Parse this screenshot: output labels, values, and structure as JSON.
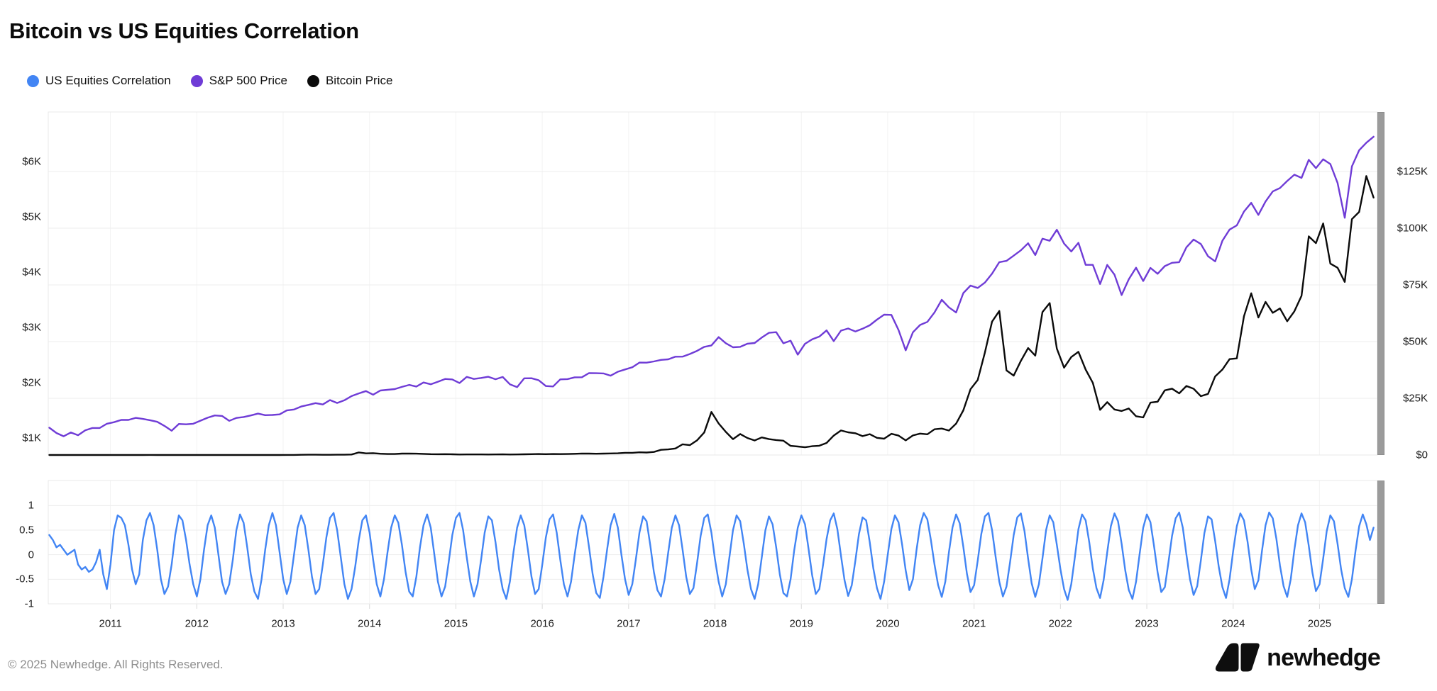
{
  "header": {
    "title": "Bitcoin vs US Equities Correlation"
  },
  "legend": {
    "items": [
      {
        "label": "US Equities Correlation",
        "color": "#4285F4"
      },
      {
        "label": "S&P 500 Price",
        "color": "#6F3CD6"
      },
      {
        "label": "Bitcoin Price",
        "color": "#0B0B0B"
      }
    ]
  },
  "footer": {
    "copyright": "© 2025 Newhedge. All Rights Reserved.",
    "brand": "newhedge"
  },
  "chart_data": {
    "type": "line",
    "title": "Bitcoin vs US Equities Correlation",
    "grid": true,
    "legend_position": "top-left",
    "x_domain": [
      2010.28,
      2025.67
    ],
    "x_ticks": [
      2011,
      2012,
      2013,
      2014,
      2015,
      2016,
      2017,
      2018,
      2019,
      2020,
      2021,
      2022,
      2023,
      2024,
      2025
    ],
    "axes": {
      "sp500": {
        "side": "left",
        "range": [
          692,
          6897
        ],
        "ticks": [
          {
            "value": 1000,
            "label": "$1K"
          },
          {
            "value": 2000,
            "label": "$2K"
          },
          {
            "value": 3000,
            "label": "$3K"
          },
          {
            "value": 4000,
            "label": "$4K"
          },
          {
            "value": 5000,
            "label": "$5K"
          },
          {
            "value": 6000,
            "label": "$6K"
          }
        ]
      },
      "bitcoin": {
        "side": "right",
        "range": [
          0,
          151250
        ],
        "ticks": [
          {
            "value": 0,
            "label": "$0"
          },
          {
            "value": 25000,
            "label": "$25K"
          },
          {
            "value": 50000,
            "label": "$50K"
          },
          {
            "value": 75000,
            "label": "$75K"
          },
          {
            "value": 100000,
            "label": "$100K"
          },
          {
            "value": 125000,
            "label": "$125K"
          }
        ]
      },
      "correlation": {
        "side": "left",
        "panel": "lower",
        "range": [
          -1,
          1.51
        ],
        "ticks": [
          {
            "value": 1,
            "label": "1"
          },
          {
            "value": 0.5,
            "label": "0.5"
          },
          {
            "value": 0,
            "label": "0"
          },
          {
            "value": -0.5,
            "label": "-0.5"
          },
          {
            "value": -1,
            "label": "-1"
          }
        ]
      }
    },
    "series": [
      {
        "name": "S&P 500 Price",
        "axis": "sp500",
        "panel": "main",
        "color": "#6F3CD6",
        "x_start": 2010.292,
        "x_step": 0.0833333,
        "values": [
          1186,
          1089,
          1031,
          1100,
          1050,
          1140,
          1180,
          1180,
          1258,
          1286,
          1327,
          1326,
          1364,
          1345,
          1321,
          1292,
          1219,
          1131,
          1253,
          1247,
          1258,
          1312,
          1366,
          1408,
          1398,
          1310,
          1362,
          1379,
          1407,
          1441,
          1412,
          1416,
          1426,
          1498,
          1515,
          1569,
          1598,
          1631,
          1606,
          1686,
          1633,
          1682,
          1757,
          1806,
          1848,
          1783,
          1859,
          1872,
          1884,
          1924,
          1960,
          1931,
          2003,
          1972,
          2018,
          2068,
          2059,
          1995,
          2105,
          2068,
          2086,
          2107,
          2063,
          2104,
          1972,
          1920,
          2079,
          2080,
          2044,
          1940,
          1932,
          2060,
          2065,
          2097,
          2099,
          2174,
          2171,
          2168,
          2126,
          2199,
          2239,
          2279,
          2364,
          2363,
          2384,
          2412,
          2423,
          2470,
          2472,
          2519,
          2575,
          2648,
          2674,
          2824,
          2714,
          2641,
          2648,
          2705,
          2718,
          2816,
          2902,
          2914,
          2712,
          2760,
          2507,
          2704,
          2784,
          2834,
          2946,
          2752,
          2942,
          2980,
          2926,
          2977,
          3038,
          3141,
          3231,
          3226,
          2954,
          2585,
          2912,
          3044,
          3100,
          3271,
          3500,
          3363,
          3270,
          3622,
          3756,
          3714,
          3811,
          3973,
          4181,
          4204,
          4298,
          4395,
          4523,
          4308,
          4605,
          4567,
          4766,
          4516,
          4374,
          4530,
          4132,
          4132,
          3785,
          4130,
          3955,
          3586,
          3872,
          4080,
          3840,
          4077,
          3970,
          4109,
          4169,
          4180,
          4450,
          4589,
          4508,
          4288,
          4194,
          4568,
          4770,
          4846,
          5096,
          5254,
          5036,
          5278,
          5460,
          5522,
          5648,
          5762,
          5705,
          6032,
          5882,
          6041,
          5955,
          5612,
          4983,
          5912,
          6205,
          6340,
          6450
        ]
      },
      {
        "name": "Bitcoin Price",
        "axis": "bitcoin",
        "panel": "main",
        "color": "#0B0B0B",
        "x_start": 2010.292,
        "x_step": 0.0833333,
        "values": [
          0.05,
          0.05,
          0.06,
          0.06,
          0.06,
          0.06,
          0.2,
          0.2,
          0.3,
          1,
          1,
          1,
          3,
          9,
          17,
          13,
          10,
          5,
          3,
          3,
          4,
          5,
          5,
          5,
          5,
          5,
          7,
          9,
          10,
          12,
          11,
          12,
          13,
          20,
          33,
          93,
          139,
          128,
          97,
          98,
          128,
          127,
          204,
          1120,
          730,
          820,
          550,
          450,
          440,
          630,
          640,
          580,
          500,
          390,
          340,
          370,
          320,
          220,
          250,
          240,
          240,
          230,
          260,
          280,
          230,
          240,
          310,
          380,
          430,
          370,
          440,
          420,
          450,
          530,
          670,
          620,
          570,
          610,
          700,
          740,
          960,
          970,
          1180,
          1080,
          1350,
          2290,
          2480,
          2870,
          4730,
          4340,
          6450,
          9950,
          19000,
          13900,
          10200,
          7000,
          9240,
          7500,
          6400,
          7750,
          7000,
          6600,
          6300,
          4020,
          3740,
          3400,
          3860,
          4100,
          5320,
          8560,
          10800,
          10000,
          9600,
          8300,
          9200,
          7570,
          7190,
          9350,
          8550,
          6440,
          8620,
          9450,
          9140,
          11350,
          11650,
          10780,
          13800,
          19700,
          29000,
          33100,
          45200,
          58800,
          63500,
          37300,
          35000,
          41500,
          47150,
          43800,
          63000,
          67000,
          46900,
          38500,
          43200,
          45500,
          37650,
          31800,
          19900,
          23300,
          20050,
          19400,
          20500,
          17100,
          16550,
          23100,
          23500,
          28500,
          29250,
          27200,
          30450,
          29230,
          25940,
          26950,
          34650,
          37700,
          42270,
          42580,
          61200,
          71300,
          60640,
          67500,
          62680,
          64620,
          58970,
          63330,
          70200,
          96400,
          93400,
          102100,
          84400,
          82550,
          76300,
          104000,
          107200,
          123000,
          113500
        ]
      },
      {
        "name": "US Equities Correlation",
        "axis": "correlation",
        "panel": "lower",
        "color": "#4285F4",
        "x_start": 2010.292,
        "x_step": 0.0416667,
        "values": [
          0.4,
          0.3,
          0.15,
          0.2,
          0.1,
          0,
          0.05,
          0.1,
          -0.2,
          -0.3,
          -0.25,
          -0.35,
          -0.3,
          -0.15,
          0.1,
          -0.4,
          -0.7,
          -0.2,
          0.5,
          0.8,
          0.75,
          0.6,
          0.2,
          -0.3,
          -0.6,
          -0.4,
          0.3,
          0.7,
          0.85,
          0.6,
          0.1,
          -0.5,
          -0.8,
          -0.65,
          -0.2,
          0.4,
          0.8,
          0.7,
          0.3,
          -0.2,
          -0.6,
          -0.85,
          -0.5,
          0.1,
          0.6,
          0.8,
          0.55,
          0,
          -0.55,
          -0.8,
          -0.6,
          -0.1,
          0.5,
          0.82,
          0.65,
          0.15,
          -0.4,
          -0.75,
          -0.9,
          -0.5,
          0.1,
          0.6,
          0.85,
          0.6,
          0.05,
          -0.5,
          -0.8,
          -0.55,
          0,
          0.55,
          0.8,
          0.6,
          0.1,
          -0.45,
          -0.8,
          -0.7,
          -0.2,
          0.35,
          0.75,
          0.85,
          0.5,
          -0.05,
          -0.6,
          -0.9,
          -0.7,
          -0.25,
          0.3,
          0.7,
          0.8,
          0.45,
          -0.1,
          -0.6,
          -0.85,
          -0.5,
          0.05,
          0.55,
          0.8,
          0.65,
          0.2,
          -0.35,
          -0.75,
          -0.85,
          -0.45,
          0.15,
          0.6,
          0.82,
          0.55,
          0,
          -0.55,
          -0.85,
          -0.65,
          -0.15,
          0.4,
          0.75,
          0.85,
          0.5,
          -0.05,
          -0.55,
          -0.85,
          -0.6,
          -0.1,
          0.45,
          0.78,
          0.7,
          0.25,
          -0.3,
          -0.7,
          -0.9,
          -0.55,
          0.05,
          0.55,
          0.8,
          0.6,
          0.1,
          -0.45,
          -0.8,
          -0.7,
          -0.2,
          0.35,
          0.72,
          0.82,
          0.45,
          -0.1,
          -0.6,
          -0.85,
          -0.55,
          0,
          0.5,
          0.8,
          0.65,
          0.15,
          -0.4,
          -0.78,
          -0.88,
          -0.45,
          0.1,
          0.6,
          0.83,
          0.55,
          0,
          -0.5,
          -0.82,
          -0.6,
          -0.1,
          0.45,
          0.78,
          0.68,
          0.2,
          -0.35,
          -0.72,
          -0.85,
          -0.5,
          0.05,
          0.55,
          0.8,
          0.6,
          0.1,
          -0.45,
          -0.8,
          -0.68,
          -0.18,
          0.38,
          0.75,
          0.82,
          0.45,
          -0.1,
          -0.55,
          -0.85,
          -0.6,
          -0.05,
          0.5,
          0.8,
          0.68,
          0.22,
          -0.3,
          -0.7,
          -0.9,
          -0.6,
          -0.05,
          0.5,
          0.78,
          0.62,
          0.15,
          -0.4,
          -0.78,
          -0.85,
          -0.5,
          0.08,
          0.55,
          0.8,
          0.62,
          0.12,
          -0.42,
          -0.8,
          -0.7,
          -0.22,
          0.32,
          0.7,
          0.84,
          0.52,
          -0.02,
          -0.52,
          -0.84,
          -0.62,
          -0.12,
          0.42,
          0.76,
          0.7,
          0.26,
          -0.28,
          -0.68,
          -0.9,
          -0.55,
          0,
          0.52,
          0.8,
          0.66,
          0.2,
          -0.32,
          -0.72,
          -0.5,
          0.1,
          0.6,
          0.85,
          0.72,
          0.3,
          -0.2,
          -0.62,
          -0.86,
          -0.55,
          0.05,
          0.56,
          0.82,
          0.64,
          0.16,
          -0.38,
          -0.76,
          -0.62,
          -0.12,
          0.42,
          0.78,
          0.85,
          0.5,
          -0.05,
          -0.55,
          -0.85,
          -0.65,
          -0.15,
          0.4,
          0.76,
          0.84,
          0.48,
          -0.08,
          -0.58,
          -0.86,
          -0.6,
          -0.08,
          0.5,
          0.8,
          0.66,
          0.2,
          -0.3,
          -0.7,
          -0.92,
          -0.6,
          -0.05,
          0.52,
          0.82,
          0.7,
          0.25,
          -0.28,
          -0.68,
          -0.88,
          -0.52,
          0.05,
          0.58,
          0.84,
          0.68,
          0.22,
          -0.32,
          -0.72,
          -0.9,
          -0.55,
          0.02,
          0.55,
          0.82,
          0.66,
          0.18,
          -0.36,
          -0.76,
          -0.66,
          -0.16,
          0.38,
          0.74,
          0.86,
          0.55,
          0,
          -0.5,
          -0.82,
          -0.64,
          -0.12,
          0.44,
          0.78,
          0.72,
          0.28,
          -0.25,
          -0.66,
          -0.88,
          -0.5,
          0.08,
          0.58,
          0.84,
          0.7,
          0.26,
          -0.3,
          -0.7,
          -0.52,
          0.08,
          0.6,
          0.86,
          0.74,
          0.32,
          -0.22,
          -0.64,
          -0.86,
          -0.5,
          0.1,
          0.6,
          0.84,
          0.66,
          0.18,
          -0.36,
          -0.74,
          -0.6,
          -0.08,
          0.48,
          0.8,
          0.68,
          0.22,
          -0.3,
          -0.68,
          -0.86,
          -0.5,
          0.08,
          0.58,
          0.82,
          0.62,
          0.3,
          0.55
        ]
      }
    ]
  }
}
